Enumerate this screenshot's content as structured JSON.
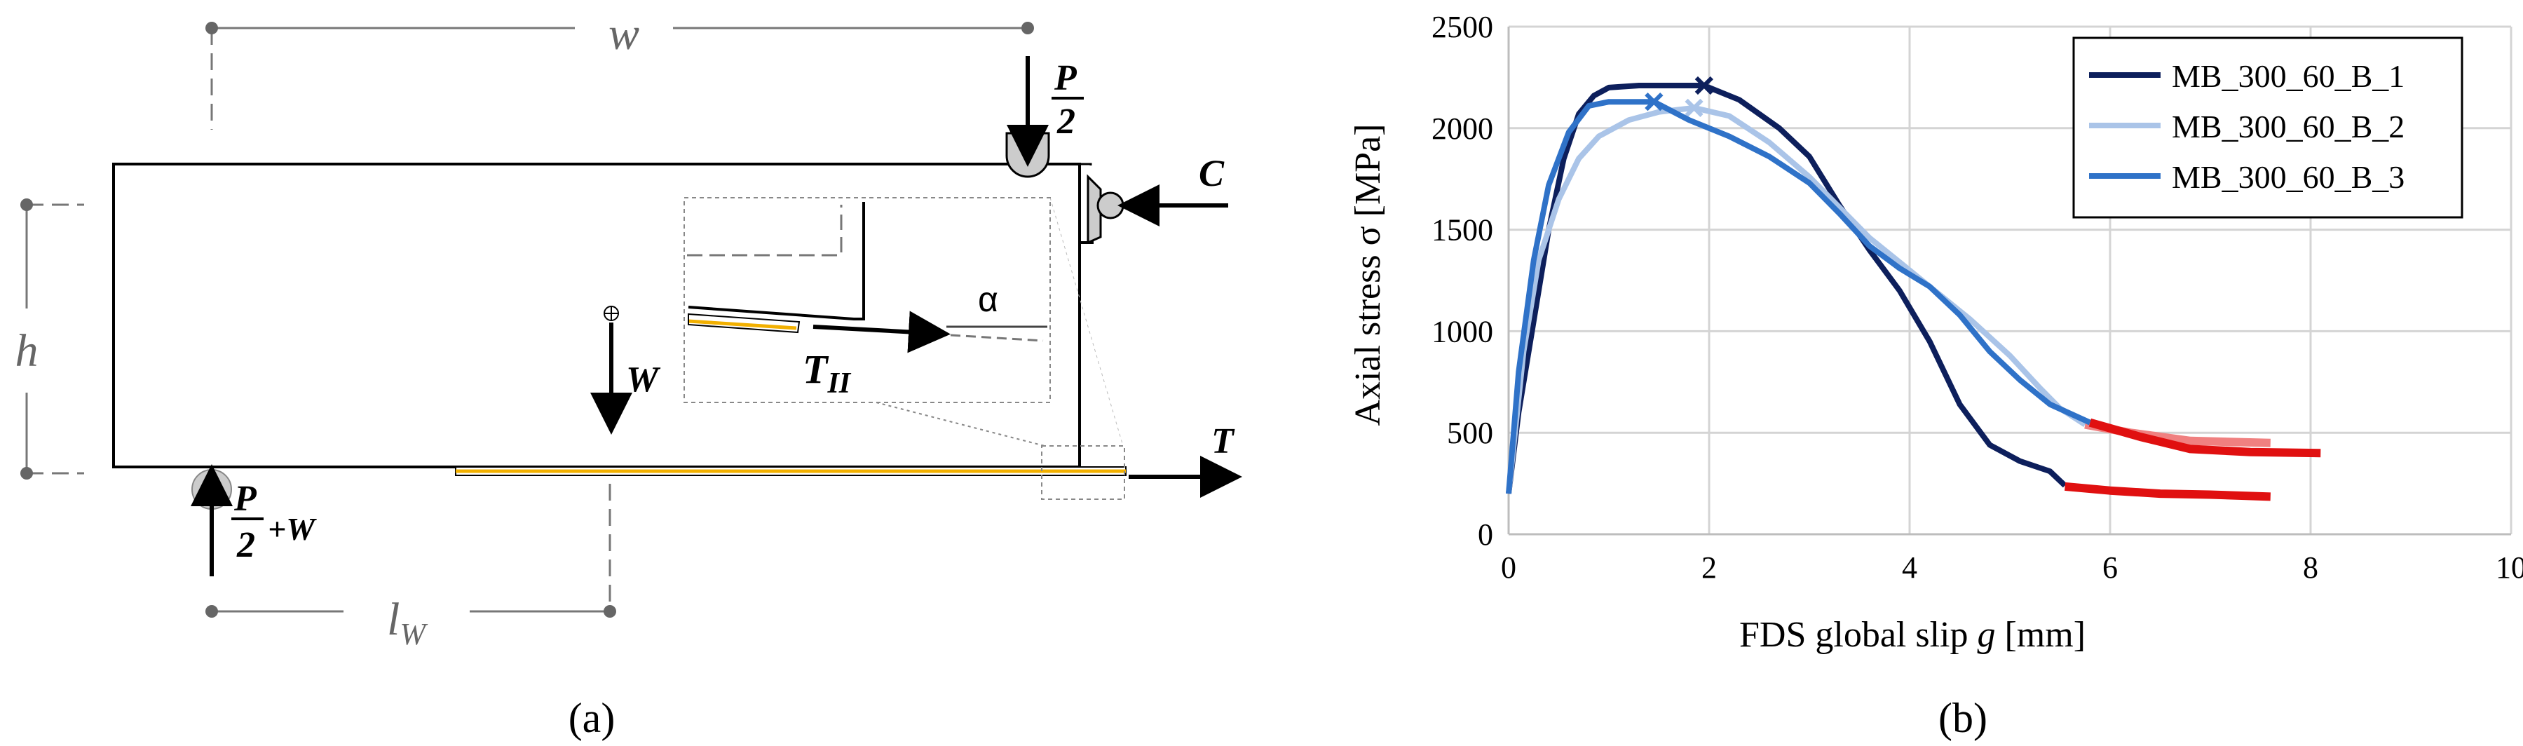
{
  "panel_a": {
    "caption": "(a)",
    "dim_w": "w",
    "dim_h": "h",
    "dim_lw_l": "l",
    "dim_lw_sub": "W",
    "load_top_num": "P",
    "load_top_den": "2",
    "load_bottom_num": "P",
    "load_bottom_den": "2",
    "load_bottom_suffix": "+W",
    "force_c": "C",
    "force_w": "W",
    "force_t": "T",
    "inset_alpha": "α",
    "inset_t_main": "T",
    "inset_t_sub": "II",
    "colors": {
      "laminate": "#f2b000",
      "line": "#000000",
      "dim": "#666666",
      "support": "#cccccc"
    }
  },
  "panel_b": {
    "caption": "(b)"
  },
  "chart_data": {
    "type": "line",
    "xlabel_prefix": "FDS global slip ",
    "xlabel_var": "g",
    "xlabel_suffix": " [mm]",
    "ylabel": "Axial stress σ [MPa]",
    "xlim": [
      0,
      10
    ],
    "ylim": [
      0,
      2500
    ],
    "xticks": [
      0,
      2,
      4,
      6,
      8,
      10
    ],
    "yticks": [
      0,
      500,
      1000,
      1500,
      2000,
      2500
    ],
    "grid": true,
    "legend_position": "top-right",
    "series": [
      {
        "name": "MB_300_60_B_1",
        "color": "#0d1f5c",
        "post_peak_color": "#e01010",
        "peak": [
          1.95,
          2210
        ],
        "points": [
          [
            0,
            200
          ],
          [
            0.1,
            600
          ],
          [
            0.25,
            1050
          ],
          [
            0.4,
            1500
          ],
          [
            0.55,
            1850
          ],
          [
            0.7,
            2070
          ],
          [
            0.85,
            2160
          ],
          [
            1.0,
            2200
          ],
          [
            1.3,
            2210
          ],
          [
            1.6,
            2210
          ],
          [
            1.95,
            2210
          ],
          [
            2.3,
            2140
          ],
          [
            2.7,
            2000
          ],
          [
            3.0,
            1860
          ],
          [
            3.3,
            1620
          ],
          [
            3.6,
            1400
          ],
          [
            3.9,
            1200
          ],
          [
            4.2,
            950
          ],
          [
            4.5,
            640
          ],
          [
            4.8,
            440
          ],
          [
            5.1,
            360
          ],
          [
            5.4,
            310
          ],
          [
            5.55,
            240
          ]
        ],
        "tail": [
          [
            5.55,
            235
          ],
          [
            6.0,
            215
          ],
          [
            6.5,
            200
          ],
          [
            7.0,
            195
          ],
          [
            7.6,
            185
          ]
        ]
      },
      {
        "name": "MB_300_60_B_2",
        "color": "#aac4e8",
        "post_peak_color": "#f08080",
        "peak": [
          1.85,
          2100
        ],
        "points": [
          [
            0,
            200
          ],
          [
            0.15,
            900
          ],
          [
            0.3,
            1350
          ],
          [
            0.5,
            1650
          ],
          [
            0.7,
            1850
          ],
          [
            0.9,
            1960
          ],
          [
            1.2,
            2040
          ],
          [
            1.5,
            2080
          ],
          [
            1.85,
            2100
          ],
          [
            2.2,
            2060
          ],
          [
            2.6,
            1930
          ],
          [
            3.0,
            1760
          ],
          [
            3.3,
            1610
          ],
          [
            3.6,
            1460
          ],
          [
            3.9,
            1340
          ],
          [
            4.2,
            1220
          ],
          [
            4.6,
            1060
          ],
          [
            5.0,
            880
          ],
          [
            5.3,
            720
          ],
          [
            5.5,
            620
          ],
          [
            5.75,
            540
          ]
        ],
        "tail": [
          [
            5.75,
            540
          ],
          [
            6.2,
            500
          ],
          [
            6.8,
            460
          ],
          [
            7.6,
            450
          ]
        ]
      },
      {
        "name": "MB_300_60_B_3",
        "color": "#2f72c8",
        "post_peak_color": "#e01010",
        "peak": [
          1.45,
          2130
        ],
        "points": [
          [
            0,
            200
          ],
          [
            0.1,
            800
          ],
          [
            0.25,
            1350
          ],
          [
            0.4,
            1720
          ],
          [
            0.6,
            1980
          ],
          [
            0.8,
            2110
          ],
          [
            1.0,
            2130
          ],
          [
            1.45,
            2130
          ],
          [
            1.8,
            2040
          ],
          [
            2.2,
            1960
          ],
          [
            2.6,
            1860
          ],
          [
            3.0,
            1730
          ],
          [
            3.3,
            1580
          ],
          [
            3.6,
            1420
          ],
          [
            3.9,
            1310
          ],
          [
            4.2,
            1220
          ],
          [
            4.5,
            1080
          ],
          [
            4.8,
            900
          ],
          [
            5.1,
            760
          ],
          [
            5.4,
            640
          ],
          [
            5.8,
            550
          ]
        ],
        "tail": [
          [
            5.8,
            550
          ],
          [
            6.3,
            480
          ],
          [
            6.8,
            420
          ],
          [
            7.4,
            405
          ],
          [
            8.1,
            400
          ]
        ]
      }
    ]
  }
}
